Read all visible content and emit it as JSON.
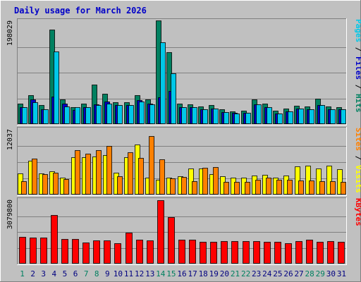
{
  "chart_data": {
    "type": "bar",
    "title": "Daily usage for March 2026",
    "days": [
      "1",
      "2",
      "3",
      "4",
      "5",
      "6",
      "7",
      "8",
      "9",
      "10",
      "11",
      "12",
      "13",
      "14",
      "15",
      "16",
      "17",
      "18",
      "19",
      "20",
      "21",
      "22",
      "23",
      "24",
      "25",
      "26",
      "27",
      "28",
      "29",
      "30",
      "31"
    ],
    "weekend_days": [
      "1",
      "7",
      "8",
      "14",
      "15",
      "21",
      "22",
      "28",
      "29"
    ],
    "panels": [
      {
        "id": "hits_files_pages",
        "ymax_label": "198029",
        "ymax": 198029,
        "side_label": [
          {
            "text": "Pages",
            "color": "#00c8e8"
          },
          {
            "text": " / ",
            "color": "#000000"
          },
          {
            "text": "Files",
            "color": "#0000c8"
          },
          {
            "text": " / ",
            "color": "#000000"
          },
          {
            "text": "Hits",
            "color": "#008060"
          }
        ],
        "series": [
          {
            "name": "Hits",
            "color": "#008060",
            "values": [
              40000,
              56000,
              36000,
              182000,
              48000,
              33000,
              40000,
              76000,
              58000,
              42000,
              42000,
              56000,
              48000,
              200000,
              138000,
              40000,
              38000,
              34000,
              36000,
              28000,
              25000,
              26000,
              47000,
              40000,
              26000,
              30000,
              35000,
              34000,
              49000,
              34000,
              33000
            ]
          },
          {
            "name": "Files",
            "color": "#0000c8",
            "values": [
              32000,
              47000,
              28000,
              53000,
              40000,
              27000,
              32000,
              38000,
              43000,
              37000,
              37000,
              46000,
              40000,
              52000,
              64000,
              32000,
              32000,
              29000,
              30000,
              23000,
              22000,
              22000,
              38000,
              33000,
              21000,
              25000,
              30000,
              29000,
              36000,
              29000,
              28000
            ]
          },
          {
            "name": "Pages",
            "color": "#00c8e8",
            "values": [
              32000,
              42000,
              28000,
              140000,
              34000,
              32000,
              32000,
              36000,
              40000,
              37000,
              37000,
              43000,
              38000,
              158000,
              98000,
              32000,
              32000,
              29000,
              30000,
              23000,
              21000,
              22000,
              38000,
              33000,
              21000,
              25000,
              30000,
              29000,
              36000,
              29000,
              28000
            ]
          }
        ]
      },
      {
        "id": "visits_sites",
        "ymax_label": "12037",
        "ymax": 12037,
        "side_label": [
          {
            "text": "Sites",
            "color": "#ff8000"
          },
          {
            "text": " / ",
            "color": "#000000"
          },
          {
            "text": "Visits",
            "color": "#ffff00"
          }
        ],
        "series": [
          {
            "name": "Visits",
            "color": "#ffff00",
            "values": [
              3900,
              6300,
              3900,
              4300,
              3200,
              6900,
              6900,
              7000,
              7300,
              4000,
              6900,
              9300,
              3200,
              2800,
              3100,
              3400,
              4900,
              4900,
              3800,
              3400,
              3200,
              3100,
              3500,
              3700,
              3200,
              3500,
              5200,
              5300,
              4800,
              5300,
              4700
            ]
          },
          {
            "name": "Sites",
            "color": "#ff8000",
            "values": [
              2500,
              6700,
              3800,
              4000,
              2900,
              8200,
              7600,
              8300,
              9000,
              3400,
              7900,
              6800,
              10800,
              6500,
              3000,
              3300,
              2500,
              5000,
              5100,
              2400,
              2400,
              2400,
              2700,
              3100,
              2700,
              2700,
              2600,
              2600,
              2500,
              2500,
              2400
            ]
          }
        ]
      },
      {
        "id": "kbytes",
        "ymax_label": "3079800",
        "ymax": 3079800,
        "side_label": [
          {
            "text": "KBytes",
            "color": "#ff0000"
          }
        ],
        "series": [
          {
            "name": "KBytes",
            "color": "#ff0000",
            "values": [
              1290000,
              1260000,
              1260000,
              2370000,
              1190000,
              1200000,
              1030000,
              1130000,
              1130000,
              980000,
              1500000,
              1150000,
              1140000,
              3079800,
              2270000,
              1180000,
              1180000,
              1060000,
              1050000,
              1080000,
              1080000,
              1110000,
              1090000,
              1070000,
              1050000,
              1000000,
              1080000,
              1150000,
              1060000,
              1090000,
              1060000
            ]
          }
        ]
      }
    ]
  }
}
